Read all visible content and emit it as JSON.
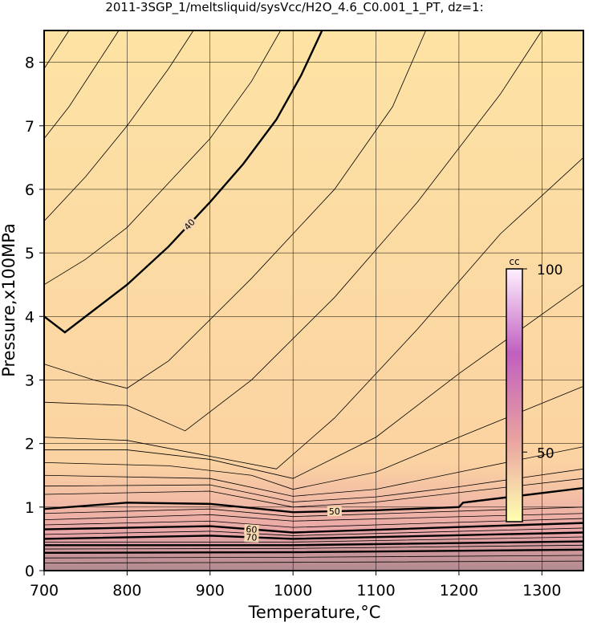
{
  "chart_data": {
    "type": "contour",
    "title": "2011-3SGP_1/meltsliquid/sysVcc/H2O_4.6_C0.001_1_PT, dz=1:",
    "x_label": "Temperature,°C",
    "y_label": "Pressure,x100MPa",
    "xlim": [
      700,
      1350
    ],
    "ylim": [
      0,
      8.5
    ],
    "xticks": [
      700,
      800,
      900,
      1000,
      1100,
      1200,
      1300
    ],
    "yticks": [
      0,
      1,
      2,
      3,
      4,
      5,
      6,
      7,
      8
    ],
    "grid": true,
    "line_color": "#000000",
    "colorbar": {
      "label": "cc",
      "lim": [
        31,
        100
      ],
      "ticks": [
        50,
        100
      ],
      "colors": [
        "#ffffb0",
        "#e8a0a0",
        "#c060c0",
        "#fff0ff"
      ]
    },
    "contours": [
      {
        "level": 36,
        "labeled": false,
        "x": [
          700,
          730
        ],
        "y": [
          7.9,
          8.5
        ]
      },
      {
        "level": 37,
        "labeled": false,
        "x": [
          700,
          730,
          760,
          790
        ],
        "y": [
          6.8,
          7.3,
          7.9,
          8.5
        ]
      },
      {
        "level": 38,
        "labeled": false,
        "x": [
          700,
          750,
          800,
          850,
          880
        ],
        "y": [
          5.5,
          6.2,
          7.0,
          7.9,
          8.5
        ]
      },
      {
        "level": 39,
        "labeled": false,
        "x": [
          700,
          750,
          800,
          850,
          900,
          950,
          985
        ],
        "y": [
          4.5,
          4.9,
          5.4,
          6.1,
          6.8,
          7.7,
          8.5
        ]
      },
      {
        "level": 40,
        "labeled": true,
        "x": [
          700,
          725,
          760,
          800,
          850,
          900,
          940,
          980,
          1010,
          1035
        ],
        "y": [
          4.0,
          3.75,
          4.1,
          4.5,
          5.1,
          5.8,
          6.4,
          7.1,
          7.8,
          8.5
        ]
      },
      {
        "level": 41,
        "labeled": false,
        "x": [
          700,
          760,
          800,
          850,
          950,
          1050,
          1120,
          1160
        ],
        "y": [
          3.25,
          3.0,
          2.87,
          3.3,
          4.6,
          6.0,
          7.3,
          8.5
        ]
      },
      {
        "level": 42,
        "labeled": false,
        "x": [
          700,
          800,
          870,
          950,
          1050,
          1150,
          1250,
          1300
        ],
        "y": [
          2.65,
          2.6,
          2.2,
          3.0,
          4.3,
          5.8,
          7.5,
          8.5
        ]
      },
      {
        "level": 43,
        "labeled": false,
        "x": [
          700,
          800,
          900,
          980,
          1050,
          1150,
          1250,
          1350
        ],
        "y": [
          2.1,
          2.05,
          1.8,
          1.6,
          2.4,
          3.8,
          5.3,
          6.5
        ]
      },
      {
        "level": 44,
        "labeled": false,
        "x": [
          700,
          800,
          900,
          1000,
          1100,
          1200,
          1350
        ],
        "y": [
          1.9,
          1.9,
          1.75,
          1.45,
          2.1,
          3.1,
          4.5
        ]
      },
      {
        "level": 45,
        "labeled": false,
        "x": [
          700,
          850,
          950,
          1000,
          1100,
          1200,
          1350
        ],
        "y": [
          1.7,
          1.65,
          1.5,
          1.28,
          1.55,
          2.1,
          2.9
        ]
      },
      {
        "level": 46,
        "labeled": false,
        "x": [
          700,
          900,
          1000,
          1100,
          1200,
          1350
        ],
        "y": [
          1.5,
          1.45,
          1.17,
          1.28,
          1.55,
          1.95
        ]
      },
      {
        "level": 47,
        "labeled": false,
        "x": [
          700,
          900,
          1000,
          1100,
          1200,
          1350
        ],
        "y": [
          1.33,
          1.35,
          1.08,
          1.16,
          1.32,
          1.6
        ]
      },
      {
        "level": 48,
        "labeled": false,
        "x": [
          700,
          900,
          1000,
          1100,
          1350
        ],
        "y": [
          1.2,
          1.25,
          1.0,
          1.08,
          1.45
        ]
      },
      {
        "level": 50,
        "labeled": true,
        "x": [
          700,
          800,
          900,
          1000,
          1100,
          1200,
          1205,
          1350
        ],
        "y": [
          0.97,
          1.07,
          1.05,
          0.92,
          0.95,
          1.0,
          1.07,
          1.3
        ]
      },
      {
        "level": 52,
        "labeled": false,
        "x": [
          700,
          900,
          1000,
          1350
        ],
        "y": [
          0.9,
          0.97,
          0.85,
          1.0
        ]
      },
      {
        "level": 55,
        "labeled": false,
        "x": [
          700,
          900,
          1000,
          1350
        ],
        "y": [
          0.8,
          0.88,
          0.78,
          0.9
        ]
      },
      {
        "level": 58,
        "labeled": false,
        "x": [
          700,
          900,
          1000,
          1350
        ],
        "y": [
          0.72,
          0.78,
          0.68,
          0.82
        ]
      },
      {
        "level": 60,
        "labeled": true,
        "x": [
          700,
          900,
          1000,
          1350
        ],
        "y": [
          0.65,
          0.7,
          0.6,
          0.75
        ]
      },
      {
        "level": 65,
        "labeled": false,
        "x": [
          700,
          900,
          1000,
          1350
        ],
        "y": [
          0.57,
          0.62,
          0.55,
          0.67
        ]
      },
      {
        "level": 70,
        "labeled": true,
        "x": [
          700,
          900,
          1000,
          1350
        ],
        "y": [
          0.5,
          0.55,
          0.5,
          0.6
        ]
      },
      {
        "level": 75,
        "labeled": false,
        "x": [
          700,
          1000,
          1350
        ],
        "y": [
          0.45,
          0.45,
          0.53
        ]
      },
      {
        "level": 80,
        "labeled": false,
        "x": [
          700,
          1000,
          1350
        ],
        "y": [
          0.4,
          0.4,
          0.46
        ]
      },
      {
        "level": 85,
        "labeled": false,
        "x": [
          700,
          1000,
          1350
        ],
        "y": [
          0.34,
          0.35,
          0.4
        ]
      },
      {
        "level": 90,
        "labeled": false,
        "x": [
          700,
          1000,
          1350
        ],
        "y": [
          0.28,
          0.29,
          0.33
        ]
      },
      {
        "level": 95,
        "labeled": false,
        "x": [
          700,
          1000,
          1350
        ],
        "y": [
          0.2,
          0.21,
          0.24
        ]
      },
      {
        "level": 99,
        "labeled": false,
        "x": [
          700,
          1000,
          1350
        ],
        "y": [
          0.12,
          0.13,
          0.15
        ]
      }
    ]
  }
}
